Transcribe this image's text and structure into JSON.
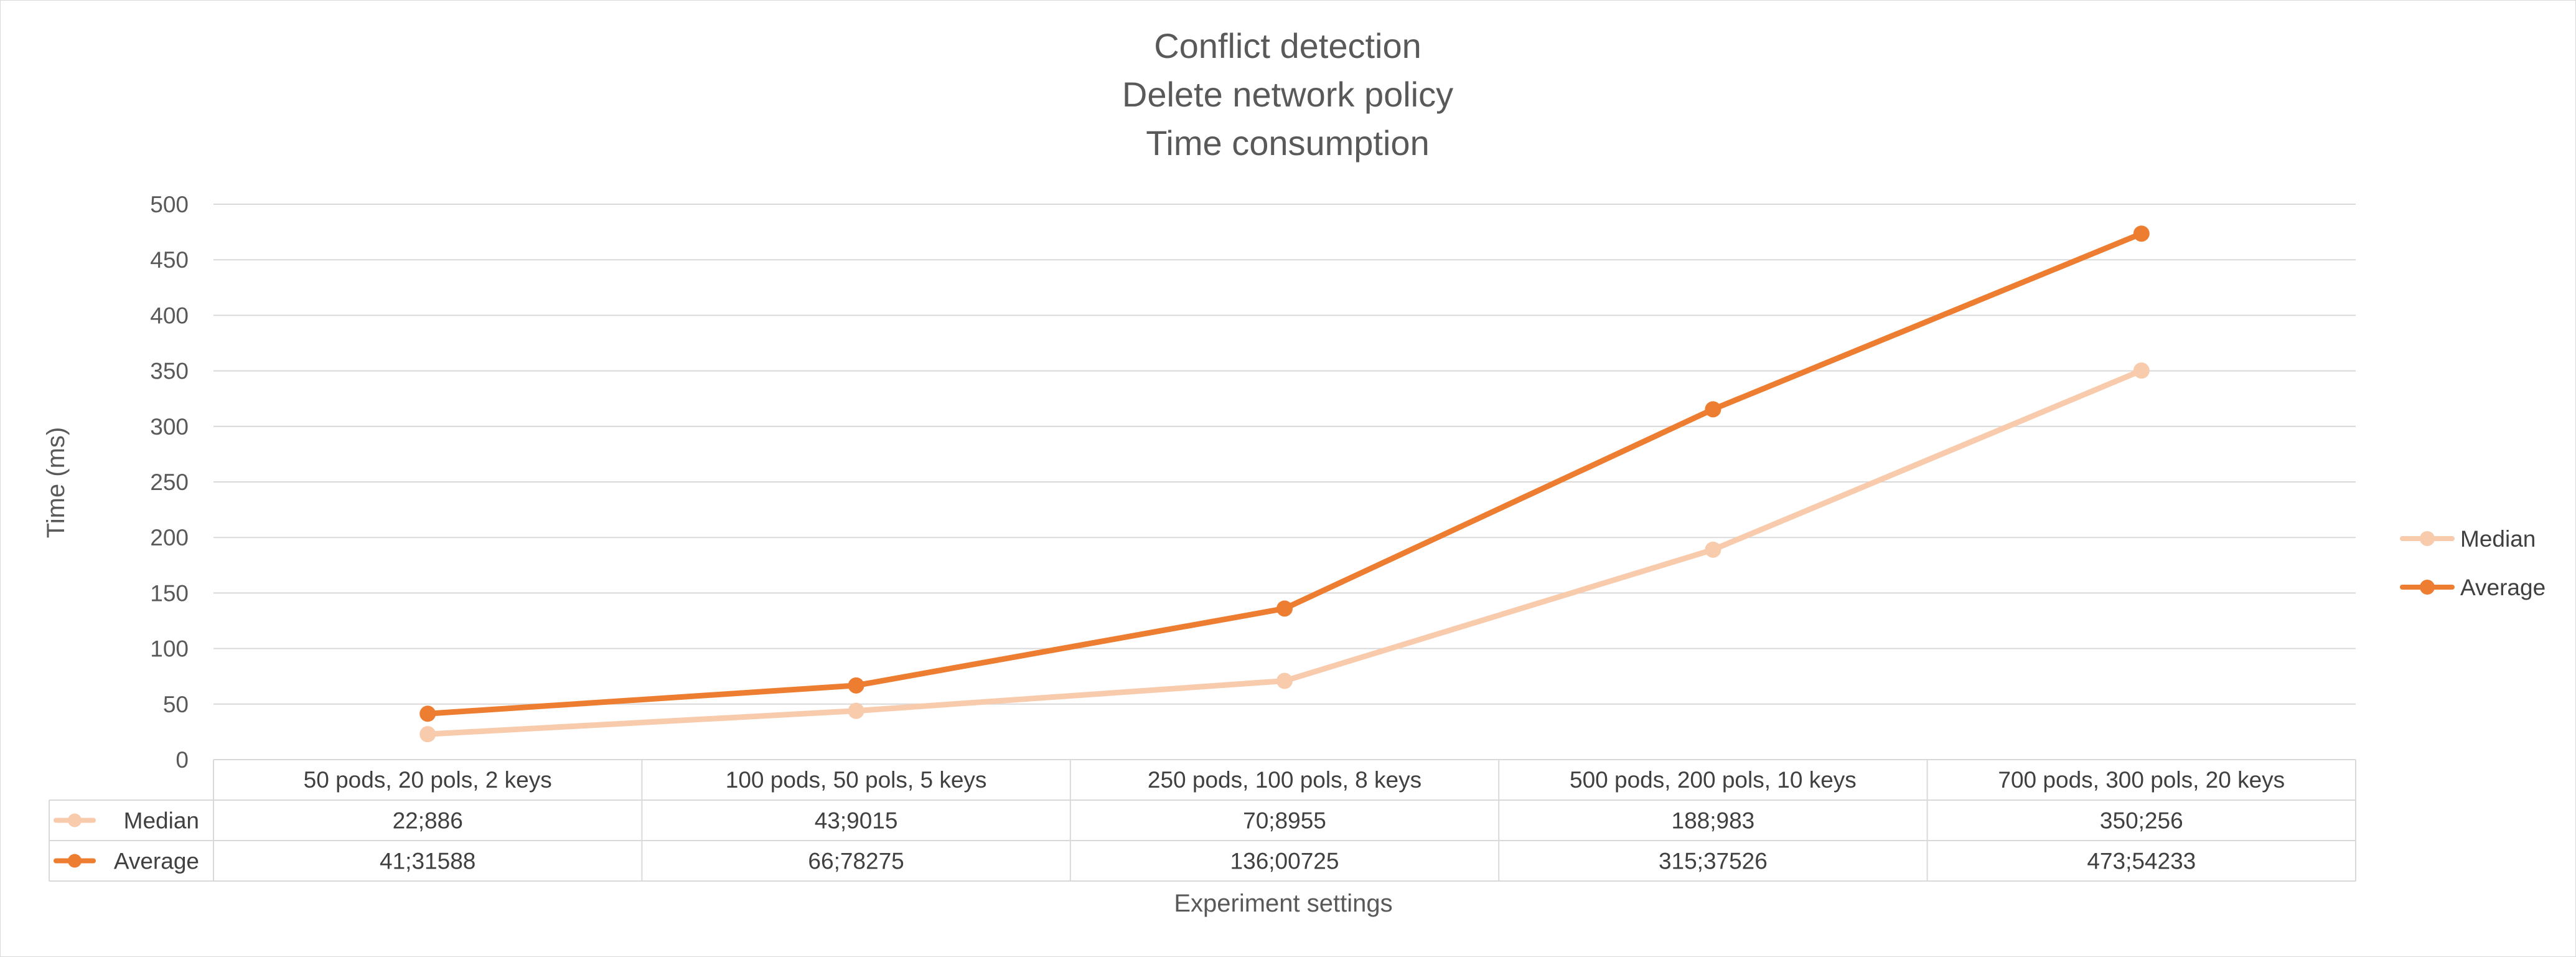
{
  "chart_data": {
    "type": "line",
    "title": [
      "Conflict detection",
      "Delete network policy",
      "Time consumption"
    ],
    "xlabel": "Experiment settings",
    "ylabel": "Time (ms)",
    "ylim": [
      0,
      500
    ],
    "yticks": [
      0,
      50,
      100,
      150,
      200,
      250,
      300,
      350,
      400,
      450,
      500
    ],
    "grid": true,
    "legend_position": "right",
    "categories": [
      "50 pods, 20 pols, 2 keys",
      "100 pods, 50 pols, 5 keys",
      "250 pods, 100 pols, 8 keys",
      "500 pods, 200 pols, 10 keys",
      "700 pods, 300 pols, 20 keys"
    ],
    "series": [
      {
        "name": "Median",
        "color": "#f8cbad",
        "values": [
          22.886,
          43.9015,
          70.8955,
          188.983,
          350.256
        ],
        "labels": [
          "22;886",
          "43;9015",
          "70;8955",
          "188;983",
          "350;256"
        ]
      },
      {
        "name": "Average",
        "color": "#ed7d31",
        "values": [
          41.31588,
          66.78275,
          136.00725,
          315.37526,
          473.54233
        ],
        "labels": [
          "41;31588",
          "66;78275",
          "136;00725",
          "315;37526",
          "473;54233"
        ]
      }
    ]
  }
}
